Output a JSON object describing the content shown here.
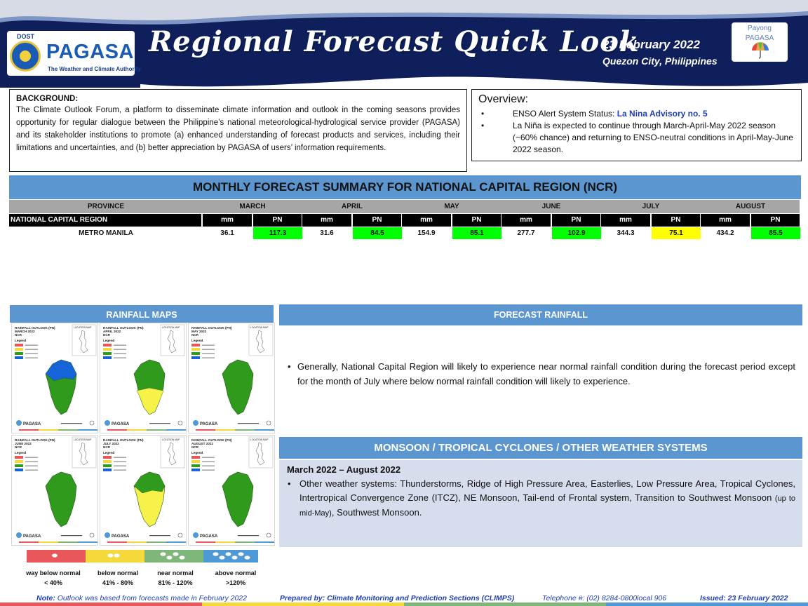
{
  "header": {
    "logo_dost": "DOST",
    "logo_name": "PAGASA",
    "logo_tagline": "The Weather and Climate Authority",
    "title": "Regional Forecast Quick Look",
    "period": "March 2022 – August 2022",
    "date": "23 February 2022",
    "location": "Quezon City, Philippines",
    "payong_line1": "Payong",
    "payong_line2": "PAGASA",
    "colors": {
      "navy": "#0e1f5c",
      "bar_blue": "#5b96d0"
    }
  },
  "background": {
    "heading": "BACKGROUND:",
    "text": "The Climate Outlook Forum, a platform to disseminate climate information and outlook in the coming seasons provides opportunity for regular dialogue between the Philippine’s national meteorological-hydrological service provider (PAGASA) and its stakeholder institutions to promote (a) enhanced understanding of forecast products and services, including their limitations and uncertainties, and (b) better appreciation by PAGASA of users’ information requirements."
  },
  "overview": {
    "heading": "Overview:",
    "item1_prefix": "ENSO Alert System Status: ",
    "item1_highlight": "La Nina Advisory no. 5",
    "item2": "La Niña is expected to continue through March-April-May 2022 season (~60% chance) and returning to ENSO-neutral conditions in April-May-June 2022 season."
  },
  "summary": {
    "title": "MONTHLY FORECAST SUMMARY FOR NATIONAL CAPITAL REGION (NCR)",
    "province_header": "PROVINCE",
    "region_label": "NATIONAL CAPITAL REGION",
    "mm_label": "mm",
    "pn_label": "PN",
    "months": [
      "MARCH",
      "APRIL",
      "MAY",
      "JUNE",
      "JULY",
      "AUGUST"
    ],
    "rows": [
      {
        "province": "METRO MANILA",
        "values": [
          {
            "mm": "36.1",
            "pn": "117.3",
            "class": "near normal"
          },
          {
            "mm": "31.6",
            "pn": "84.5",
            "class": "near normal"
          },
          {
            "mm": "154.9",
            "pn": "85.1",
            "class": "near normal"
          },
          {
            "mm": "277.7",
            "pn": "102.9",
            "class": "near normal"
          },
          {
            "mm": "344.3",
            "pn": "75.1",
            "class": "below normal"
          },
          {
            "mm": "434.2",
            "pn": "85.5",
            "class": "near normal"
          }
        ]
      }
    ],
    "colors": {
      "near normal": "#00ff00",
      "below normal": "#ffff00"
    }
  },
  "rainfall_maps": {
    "heading": "RAINFALL MAPS",
    "tiles": [
      {
        "title": "RAINFALL OUTLOOK (PN)",
        "month": "MARCH 2022",
        "region": "NCR",
        "fill": "#2f9a1b",
        "north_fill": "#1565d8"
      },
      {
        "title": "RAINFALL OUTLOOK (PN)",
        "month": "APRIL 2022",
        "region": "NCR",
        "fill": "#2f9a1b",
        "south_fill": "#f6f24a"
      },
      {
        "title": "RAINFALL OUTLOOK (PN)",
        "month": "MAY 2022",
        "region": "NCR",
        "fill": "#2f9a1b"
      },
      {
        "title": "RAINFALL OUTLOOK (PN)",
        "month": "JUNE 2022",
        "region": "NCR",
        "fill": "#2f9a1b"
      },
      {
        "title": "RAINFALL OUTLOOK (PN)",
        "month": "JULY 2022",
        "region": "NCR",
        "fill": "#f6f24a",
        "north_fill": "#2f9a1b"
      },
      {
        "title": "RAINFALL OUTLOOK (PN)",
        "month": "AUGUST 2022",
        "region": "NCR",
        "fill": "#2f9a1b"
      }
    ],
    "inset_label": "LOCATION MAP",
    "legend_heading": "Legend",
    "map_logo": "PAGASA",
    "legend": [
      {
        "label": "way below normal",
        "range": "< 40%",
        "color": "#e8585a"
      },
      {
        "label": "below normal",
        "range": "41% - 80%",
        "color": "#f5d93b"
      },
      {
        "label": "near normal",
        "range": "81% - 120%",
        "color": "#7fb77a"
      },
      {
        "label": "above normal",
        "range": ">120%",
        "color": "#4f9ad6"
      }
    ]
  },
  "forecast_rainfall": {
    "heading": "FORECAST RAINFALL",
    "text": "Generally, National Capital Region will likely to experience near normal rainfall condition during the forecast period except for the month of July where below normal rainfall condition will likely to experience."
  },
  "monsoon": {
    "heading": "MONSOON / TROPICAL CYCLONES / OTHER WEATHER SYSTEMS",
    "period": "March 2022 – August 2022",
    "text_main": "Other weather systems: Thunderstorms,  Ridge of High Pressure Area,  Easterlies, Low Pressure Area, Tropical Cyclones, Intertropical Convergence Zone (ITCZ), NE Monsoon, Tail-end of Frontal system, Transition to Southwest Monsoon ",
    "text_small": "(up to mid-May)",
    "text_end": ", Southwest Monsoon."
  },
  "footer": {
    "note_label": "Note:",
    "note_text": " Outlook was based from forecasts made in February 2022",
    "prepared": "Prepared by: Climate Monitoring and Prediction Sections (CLIMPS)",
    "telephone": "Telephone #: (02) 8284-0800local 906",
    "issued": "Issued: 23 February 2022"
  }
}
